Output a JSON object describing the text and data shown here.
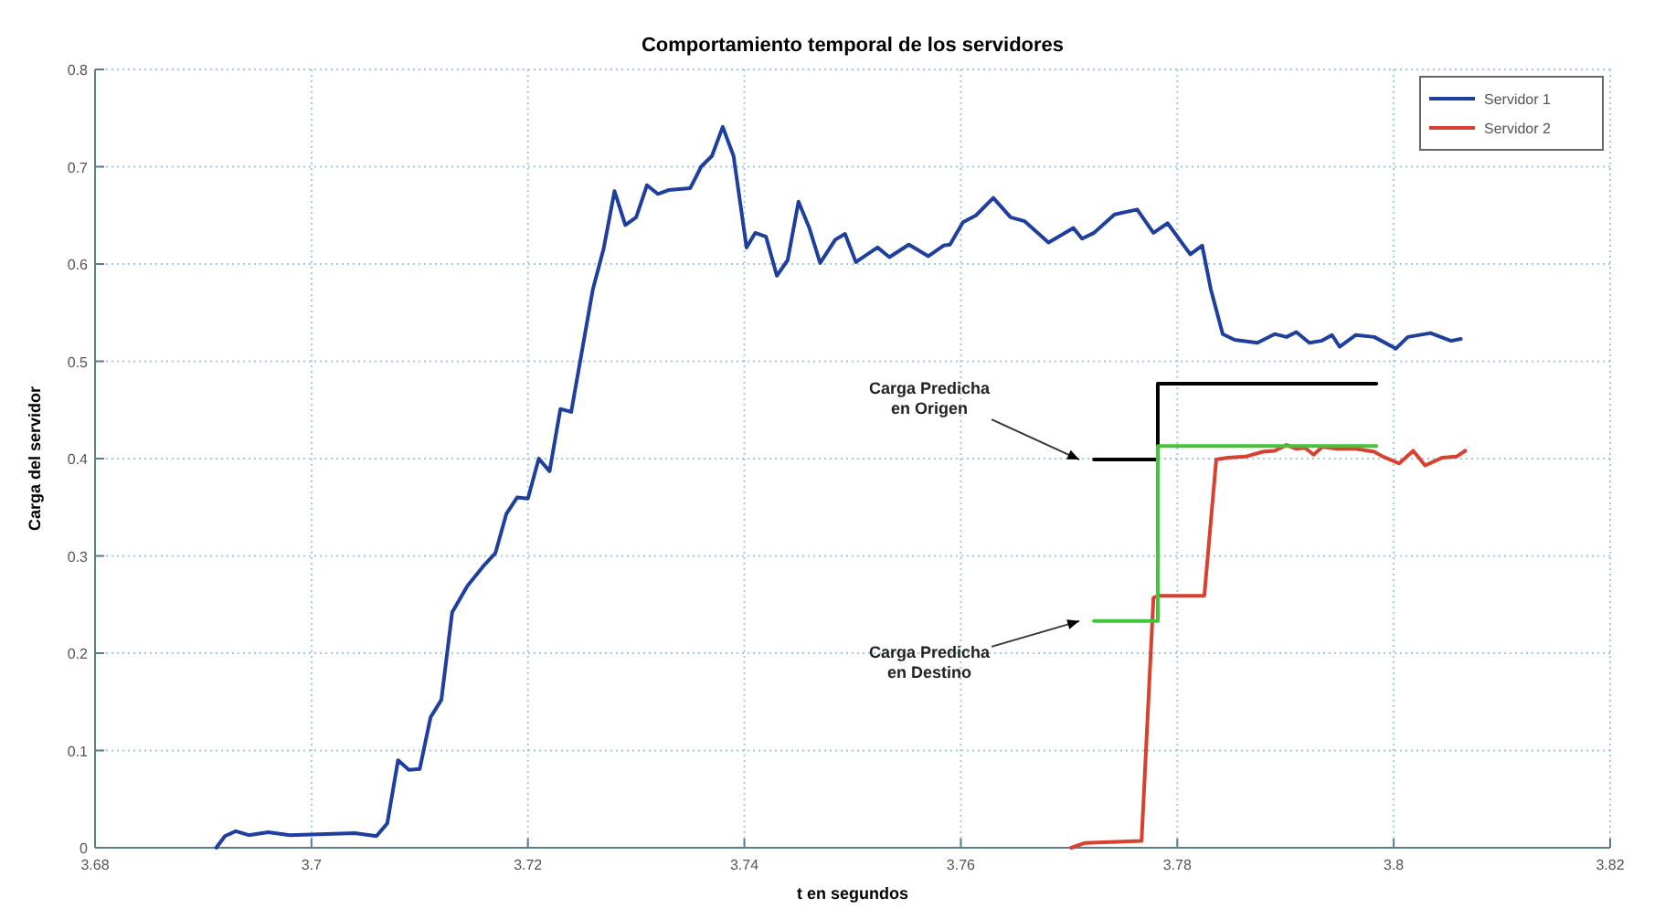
{
  "chart_data": {
    "type": "line",
    "title": "Comportamiento temporal de los servidores",
    "xlabel": "t en segundos",
    "ylabel": "Carga del servidor",
    "xlim": [
      3.68,
      3.82
    ],
    "xticks": [
      3.68,
      3.7,
      3.72,
      3.74,
      3.76,
      3.78,
      3.8,
      3.82
    ],
    "ylim": [
      0,
      0.8
    ],
    "yticks": [
      0,
      0.1,
      0.2,
      0.3,
      0.4,
      0.5,
      0.6,
      0.7,
      0.8
    ],
    "grid": true,
    "legend": "top right",
    "series": [
      {
        "name": "Servidor 1",
        "color": "#1f3f9f",
        "x": [
          3.6912,
          3.692,
          3.693,
          3.6942,
          3.696,
          3.698,
          3.704,
          3.706,
          3.707,
          3.708,
          3.709,
          3.71,
          3.711,
          3.712,
          3.713,
          3.7144,
          3.716,
          3.717,
          3.718,
          3.719,
          3.72,
          3.721,
          3.722,
          3.723,
          3.724,
          3.726,
          3.727,
          3.728,
          3.729,
          3.73,
          3.731,
          3.732,
          3.733,
          3.735,
          3.736,
          3.737,
          3.738,
          3.739,
          3.7402,
          3.741,
          3.742,
          3.743,
          3.744,
          3.745,
          3.746,
          3.747,
          3.7484,
          3.7493,
          3.7503,
          3.7523,
          3.7534,
          3.7552,
          3.757,
          3.7584,
          3.759,
          3.7602,
          3.7614,
          3.763,
          3.7646,
          3.7659,
          3.7681,
          3.7704,
          3.7712,
          3.7723,
          3.7742,
          3.7763,
          3.7778,
          3.7791,
          3.7812,
          3.7823,
          3.7831,
          3.7842,
          3.7853,
          3.7874,
          3.789,
          3.7901,
          3.791,
          3.7922,
          3.7933,
          3.7943,
          3.795,
          3.7965,
          3.7982,
          3.8002,
          3.8013,
          3.8034,
          3.8053,
          3.8062
        ],
        "values": [
          0,
          0.012,
          0.017,
          0.013,
          0.016,
          0.013,
          0.015,
          0.012,
          0.025,
          0.09,
          0.08,
          0.081,
          0.134,
          0.152,
          0.242,
          0.269,
          0.291,
          0.303,
          0.343,
          0.36,
          0.359,
          0.4,
          0.387,
          0.451,
          0.448,
          0.574,
          0.616,
          0.675,
          0.64,
          0.648,
          0.681,
          0.672,
          0.676,
          0.678,
          0.7,
          0.711,
          0.741,
          0.711,
          0.617,
          0.632,
          0.628,
          0.588,
          0.604,
          0.664,
          0.637,
          0.601,
          0.625,
          0.631,
          0.602,
          0.617,
          0.607,
          0.62,
          0.608,
          0.619,
          0.62,
          0.643,
          0.65,
          0.668,
          0.648,
          0.644,
          0.622,
          0.637,
          0.626,
          0.632,
          0.651,
          0.656,
          0.632,
          0.642,
          0.61,
          0.619,
          0.574,
          0.528,
          0.522,
          0.519,
          0.528,
          0.525,
          0.53,
          0.519,
          0.521,
          0.527,
          0.515,
          0.527,
          0.525,
          0.513,
          0.525,
          0.529,
          0.521,
          0.523
        ]
      },
      {
        "name": "Servidor 2",
        "color": "#d9402f",
        "x": [
          3.7702,
          3.7715,
          3.7767,
          3.7778,
          3.7783,
          3.7825,
          3.7836,
          3.7847,
          3.7863,
          3.7879,
          3.789,
          3.7901,
          3.791,
          3.7918,
          3.7926,
          3.7934,
          3.7948,
          3.7965,
          3.7982,
          3.799,
          3.8005,
          3.8018,
          3.8029,
          3.8045,
          3.8058,
          3.8066
        ],
        "values": [
          0,
          0.005,
          0.007,
          0.257,
          0.259,
          0.259,
          0.399,
          0.401,
          0.402,
          0.407,
          0.408,
          0.414,
          0.41,
          0.411,
          0.404,
          0.412,
          0.41,
          0.41,
          0.407,
          0.402,
          0.395,
          0.408,
          0.393,
          0.401,
          0.402,
          0.408
        ]
      },
      {
        "type": "step",
        "color": "#000000",
        "x": [
          3.7723,
          3.7782,
          3.7984
        ],
        "values": [
          0.399,
          0.477,
          0.477
        ]
      },
      {
        "type": "step",
        "color": "#44c43a",
        "x": [
          3.7723,
          3.7782,
          3.7984
        ],
        "values": [
          0.233,
          0.413,
          0.413
        ]
      }
    ],
    "annotations": [
      {
        "text": "Carga Predicha\nen Origen",
        "x": 3.7723,
        "y": 0.399
      },
      {
        "text": "Carga Predicha\nen Destino",
        "x": 3.7723,
        "y": 0.233
      }
    ]
  }
}
